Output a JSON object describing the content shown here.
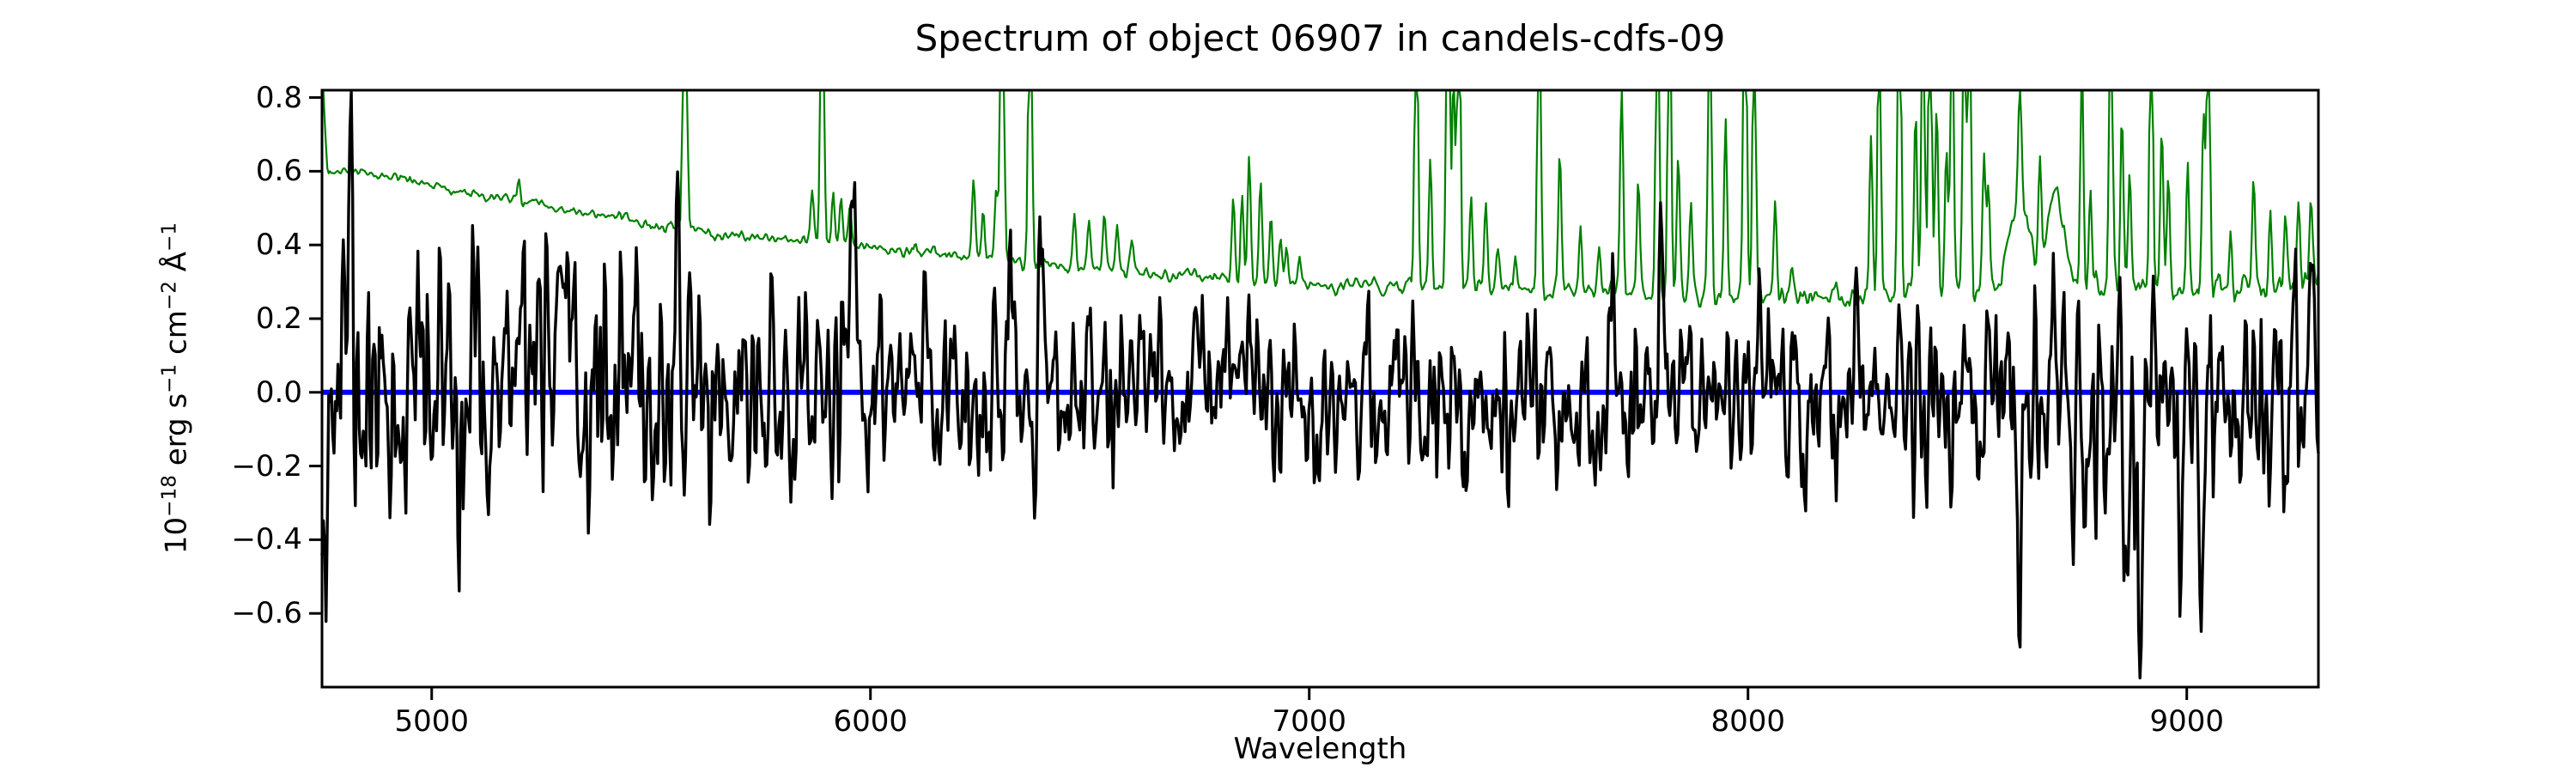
{
  "title": "Spectrum of object 06907 in candels-cdfs-09",
  "chart_data": {
    "type": "line",
    "title": "Spectrum of object 06907 in candels-cdfs-09",
    "xlabel": "Wavelength",
    "ylabel": "10−18 erg s−1 cm−2 Å−1",
    "ylabel_segments": [
      {
        "t": "10",
        "sup": false
      },
      {
        "t": "−18",
        "sup": true
      },
      {
        "t": " erg s",
        "sup": false
      },
      {
        "t": "−1",
        "sup": true
      },
      {
        "t": " cm",
        "sup": false
      },
      {
        "t": "−2",
        "sup": true
      },
      {
        "t": " Å",
        "sup": false
      },
      {
        "t": "−1",
        "sup": true
      }
    ],
    "xlim": [
      4750,
      9300
    ],
    "ylim": [
      -0.8,
      0.82
    ],
    "xtick_values": [
      5000,
      6000,
      7000,
      8000,
      9000
    ],
    "xtick_labels": [
      "5000",
      "6000",
      "7000",
      "8000",
      "9000"
    ],
    "ytick_values": [
      -0.6,
      -0.4,
      -0.2,
      0.0,
      0.2,
      0.4,
      0.6,
      0.8
    ],
    "ytick_labels": [
      "−0.6",
      "−0.4",
      "−0.2",
      "0.0",
      "0.2",
      "0.4",
      "0.6",
      "0.8"
    ],
    "grid": false,
    "legend": null,
    "background": "#ffffff",
    "spine_color": "#000000",
    "series": [
      {
        "name": "zero-flux-line",
        "kind": "hline",
        "y": 0,
        "color": "#0000ff",
        "linewidth": 6
      },
      {
        "name": "noise-sky-spectrum",
        "kind": "sky-line",
        "color": "#008000",
        "linewidth": 2.2,
        "seed": 23,
        "n_points": 1500,
        "clip_top": 0.8205,
        "line_sigma": 3.5,
        "continuum_nodes": [
          [
            4750,
            0.97
          ],
          [
            4757,
            0.7
          ],
          [
            4763,
            0.585
          ],
          [
            4775,
            0.595
          ],
          [
            4800,
            0.605
          ],
          [
            4830,
            0.598
          ],
          [
            4860,
            0.59
          ],
          [
            4900,
            0.585
          ],
          [
            4950,
            0.578
          ],
          [
            5000,
            0.558
          ],
          [
            5060,
            0.545
          ],
          [
            5120,
            0.535
          ],
          [
            5180,
            0.525
          ],
          [
            5240,
            0.515
          ],
          [
            5300,
            0.5
          ],
          [
            5360,
            0.487
          ],
          [
            5420,
            0.472
          ],
          [
            5480,
            0.458
          ],
          [
            5540,
            0.447
          ],
          [
            5600,
            0.438
          ],
          [
            5660,
            0.428
          ],
          [
            5720,
            0.42
          ],
          [
            5780,
            0.413
          ],
          [
            5840,
            0.407
          ],
          [
            5900,
            0.402
          ],
          [
            5960,
            0.398
          ],
          [
            6020,
            0.392
          ],
          [
            6100,
            0.384
          ],
          [
            6200,
            0.372
          ],
          [
            6300,
            0.358
          ],
          [
            6400,
            0.347
          ],
          [
            6500,
            0.336
          ],
          [
            6600,
            0.326
          ],
          [
            6700,
            0.316
          ],
          [
            6800,
            0.307
          ],
          [
            6900,
            0.296
          ],
          [
            7000,
            0.288
          ],
          [
            7080,
            0.292
          ],
          [
            7160,
            0.29
          ],
          [
            7240,
            0.285
          ],
          [
            7320,
            0.282
          ],
          [
            7400,
            0.28
          ],
          [
            7500,
            0.277
          ],
          [
            7600,
            0.273
          ],
          [
            7700,
            0.271
          ],
          [
            7800,
            0.268
          ],
          [
            7900,
            0.265
          ],
          [
            8000,
            0.263
          ],
          [
            8100,
            0.26
          ],
          [
            8200,
            0.258
          ],
          [
            8300,
            0.261
          ],
          [
            8400,
            0.264
          ],
          [
            8500,
            0.268
          ],
          [
            8560,
            0.272
          ],
          [
            8750,
            0.278
          ],
          [
            8800,
            0.275
          ],
          [
            8900,
            0.272
          ],
          [
            9000,
            0.27
          ],
          [
            9100,
            0.274
          ],
          [
            9180,
            0.283
          ],
          [
            9240,
            0.295
          ],
          [
            9280,
            0.31
          ],
          [
            9300,
            0.33
          ]
        ],
        "noise_amp_nodes": [
          [
            4750,
            0.006
          ],
          [
            6000,
            0.007
          ],
          [
            7000,
            0.008
          ],
          [
            8000,
            0.012
          ],
          [
            8600,
            0.015
          ],
          [
            9300,
            0.022
          ]
        ],
        "sky_lines": [
          [
            5199,
            0.055
          ],
          [
            5577,
            2.0
          ],
          [
            5867,
            0.15
          ],
          [
            5890,
            1.3
          ],
          [
            5915,
            0.14
          ],
          [
            5933,
            0.13
          ],
          [
            5953,
            0.11
          ],
          [
            6235,
            0.2
          ],
          [
            6257,
            0.13
          ],
          [
            6287,
            0.19
          ],
          [
            6300,
            1.6
          ],
          [
            6364,
            1.2
          ],
          [
            6465,
            0.15
          ],
          [
            6498,
            0.12
          ],
          [
            6533,
            0.14
          ],
          [
            6562,
            0.12
          ],
          [
            6596,
            0.09
          ],
          [
            6827,
            0.23
          ],
          [
            6847,
            0.22
          ],
          [
            6863,
            0.36
          ],
          [
            6889,
            0.27
          ],
          [
            6913,
            0.18
          ],
          [
            6935,
            0.12
          ],
          [
            6948,
            0.09
          ],
          [
            6978,
            0.08
          ],
          [
            7244,
            1.0
          ],
          [
            7276,
            0.35
          ],
          [
            7316,
            1.5
          ],
          [
            7329,
            0.6
          ],
          [
            7341,
            1.1
          ],
          [
            7369,
            0.26
          ],
          [
            7402,
            0.22
          ],
          [
            7430,
            0.12
          ],
          [
            7470,
            0.1
          ],
          [
            7524,
            1.2
          ],
          [
            7571,
            0.38
          ],
          [
            7618,
            0.18
          ],
          [
            7660,
            0.12
          ],
          [
            7712,
            0.55
          ],
          [
            7750,
            0.3
          ],
          [
            7794,
            1.3
          ],
          [
            7821,
            1.1
          ],
          [
            7841,
            0.38
          ],
          [
            7870,
            0.26
          ],
          [
            7913,
            1.2
          ],
          [
            7949,
            0.48
          ],
          [
            7993,
            1.3
          ],
          [
            8014,
            0.9
          ],
          [
            8062,
            0.26
          ],
          [
            8100,
            0.09
          ],
          [
            8280,
            0.45
          ],
          [
            8299,
            0.9
          ],
          [
            8345,
            1.3
          ],
          [
            8382,
            0.48
          ],
          [
            8399,
            1.0
          ],
          [
            8415,
            1.1
          ],
          [
            8430,
            0.52
          ],
          [
            8452,
            0.38
          ],
          [
            8465,
            0.9
          ],
          [
            8493,
            1.1
          ],
          [
            8505,
            0.9
          ],
          [
            8538,
            0.38
          ],
          [
            8548,
            0.3
          ],
          [
            8620,
            0.3
          ],
          [
            8665,
            0.3
          ],
          [
            8761,
            0.65
          ],
          [
            8780,
            0.28
          ],
          [
            8827,
            1.1
          ],
          [
            8852,
            0.48
          ],
          [
            8870,
            0.32
          ],
          [
            8919,
            1.0
          ],
          [
            8943,
            0.45
          ],
          [
            8958,
            0.32
          ],
          [
            9002,
            0.38
          ],
          [
            9038,
            0.48
          ],
          [
            9049,
            0.9
          ],
          [
            9100,
            0.16
          ],
          [
            9152,
            0.28
          ],
          [
            9190,
            0.2
          ],
          [
            9225,
            0.18
          ],
          [
            9255,
            0.22
          ],
          [
            9283,
            0.18
          ]
        ],
        "broad_features": [
          [
            8618,
            0.27,
            21
          ],
          [
            8700,
            0.26,
            19
          ]
        ]
      },
      {
        "name": "object-flux-spectrum",
        "kind": "noisy-line",
        "color": "#000000",
        "linewidth": 3.4,
        "seed": 11,
        "n_points": 1500,
        "baseline": 0,
        "clip": [
          -0.775,
          0.815
        ],
        "amplitude_nodes": [
          [
            4750,
            0.26
          ],
          [
            4900,
            0.205
          ],
          [
            5100,
            0.185
          ],
          [
            5400,
            0.17
          ],
          [
            5700,
            0.158
          ],
          [
            6000,
            0.148
          ],
          [
            6300,
            0.128
          ],
          [
            6600,
            0.115
          ],
          [
            6900,
            0.105
          ],
          [
            7100,
            0.108
          ],
          [
            7300,
            0.122
          ],
          [
            7600,
            0.128
          ],
          [
            7900,
            0.132
          ],
          [
            8200,
            0.126
          ],
          [
            8500,
            0.138
          ],
          [
            8650,
            0.155
          ],
          [
            8800,
            0.165
          ],
          [
            8950,
            0.148
          ],
          [
            9100,
            0.138
          ],
          [
            9300,
            0.152
          ]
        ],
        "features": [
          [
            4813,
            0.52,
            6
          ],
          [
            5240,
            0.3,
            6
          ],
          [
            5595,
            0.26,
            5
          ],
          [
            5963,
            0.28,
            6
          ],
          [
            6190,
            0.2,
            5
          ],
          [
            6594,
            0.18,
            5
          ],
          [
            6817,
            0.18,
            5
          ],
          [
            7800,
            0.42,
            6
          ],
          [
            8021,
            0.3,
            6
          ],
          [
            8618,
            -0.52,
            7
          ],
          [
            8673,
            -0.35,
            6
          ],
          [
            8765,
            -0.24,
            5
          ],
          [
            8816,
            -0.47,
            6
          ],
          [
            8863,
            -0.52,
            6
          ],
          [
            8894,
            -0.6,
            6
          ],
          [
            8986,
            -0.27,
            5
          ],
          [
            9031,
            -0.27,
            5
          ],
          [
            9285,
            0.26,
            8
          ]
        ]
      }
    ]
  }
}
